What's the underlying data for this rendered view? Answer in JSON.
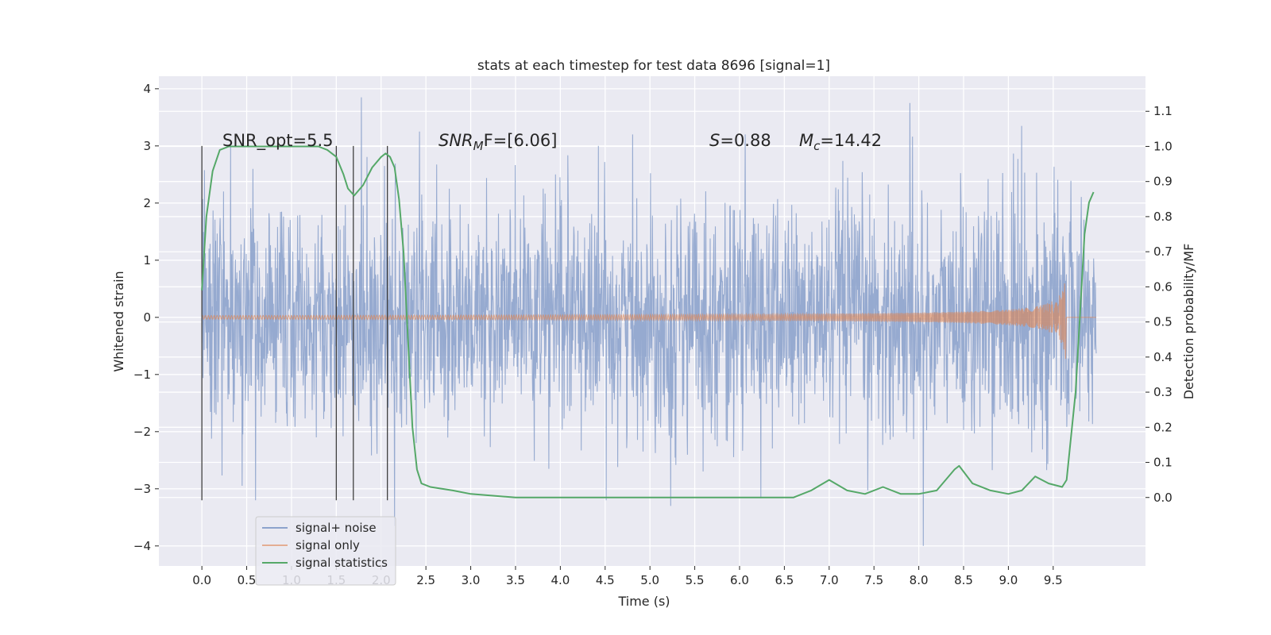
{
  "chart_data": {
    "type": "line",
    "title": "stats at each timestep for test data 8696 [signal=1]",
    "xlabel": "Time (s)",
    "ylabel": "Whitened strain",
    "y2label": "Detection probability/MF",
    "xlim": [
      -0.48,
      10.53
    ],
    "ylim": [
      -4.35,
      4.22
    ],
    "y2lim": [
      -0.195,
      1.2
    ],
    "x_ticks": [
      "0.0",
      "0.5",
      "1.0",
      "1.5",
      "2.0",
      "2.5",
      "3.0",
      "3.5",
      "4.0",
      "4.5",
      "5.0",
      "5.5",
      "6.0",
      "6.5",
      "7.0",
      "7.5",
      "8.0",
      "8.5",
      "9.0",
      "9.5"
    ],
    "x_tick_values": [
      0.0,
      0.5,
      1.0,
      1.5,
      2.0,
      2.5,
      3.0,
      3.5,
      4.0,
      4.5,
      5.0,
      5.5,
      6.0,
      6.5,
      7.0,
      7.5,
      8.0,
      8.5,
      9.0,
      9.5
    ],
    "y_ticks": [
      "−4",
      "−3",
      "−2",
      "−1",
      "0",
      "1",
      "2",
      "3",
      "4"
    ],
    "y_tick_values": [
      -4,
      -3,
      -2,
      -1,
      0,
      1,
      2,
      3,
      4
    ],
    "y2_ticks": [
      "0.0",
      "0.1",
      "0.2",
      "0.3",
      "0.4",
      "0.5",
      "0.6",
      "0.7",
      "0.8",
      "0.9",
      "1.0",
      "1.1"
    ],
    "y2_tick_values": [
      0.0,
      0.1,
      0.2,
      0.3,
      0.4,
      0.5,
      0.6,
      0.7,
      0.8,
      0.9,
      1.0,
      1.1
    ],
    "grid": true,
    "legend_position": "lower-left",
    "annotations": {
      "snr_opt": "SNR_opt=5.5",
      "snr_mf_base": "SNR",
      "snr_mf_sub": "M",
      "snr_mf_rest": "F=[6.06]",
      "s_label": "S",
      "s_value": "=0.88",
      "mc_label": "M",
      "mc_sub": "c",
      "mc_value": "=14.42"
    },
    "vertical_markers_x": [
      0.0,
      1.5,
      1.69,
      2.07
    ],
    "vertical_markers_range": [
      -3.2,
      3.0
    ],
    "series": [
      {
        "name": "signal+ noise",
        "color": "#8da3cc",
        "x_range": [
          0.0,
          9.98
        ],
        "envelope_approx": 2.4,
        "notable_peaks": [
          {
            "x": 1.78,
            "y": 3.85
          },
          {
            "x": 7.9,
            "y": 3.75
          },
          {
            "x": 8.05,
            "y": -4.0
          },
          {
            "x": 2.15,
            "y": -3.65
          },
          {
            "x": 0.6,
            "y": -3.2
          },
          {
            "x": 5.23,
            "y": -3.3
          },
          {
            "x": 9.15,
            "y": 3.35
          },
          {
            "x": 2.43,
            "y": 3.25
          }
        ]
      },
      {
        "name": "signal only",
        "color": "#dd8452",
        "x_range": [
          0.0,
          9.98
        ],
        "merger_time": 9.65,
        "peak_amplitude": 0.95
      },
      {
        "name": "signal statistics",
        "color": "#55a868",
        "x": [
          0.0,
          0.05,
          0.12,
          0.2,
          0.3,
          0.5,
          0.8,
          1.0,
          1.3,
          1.4,
          1.5,
          1.58,
          1.63,
          1.7,
          1.8,
          1.9,
          2.0,
          2.05,
          2.1,
          2.15,
          2.2,
          2.25,
          2.3,
          2.35,
          2.4,
          2.45,
          2.55,
          2.8,
          3.0,
          3.5,
          4.0,
          4.3,
          4.5,
          5.0,
          5.3,
          6.0,
          6.3,
          6.6,
          6.8,
          7.0,
          7.2,
          7.4,
          7.6,
          7.8,
          8.0,
          8.2,
          8.4,
          8.45,
          8.6,
          8.8,
          9.0,
          9.15,
          9.3,
          9.45,
          9.6,
          9.65,
          9.75,
          9.85,
          9.9,
          9.95
        ],
        "values": [
          0.59,
          0.8,
          0.93,
          0.99,
          1.0,
          1.0,
          1.0,
          1.0,
          1.0,
          0.99,
          0.97,
          0.92,
          0.88,
          0.86,
          0.89,
          0.94,
          0.97,
          0.98,
          0.97,
          0.94,
          0.85,
          0.7,
          0.45,
          0.2,
          0.08,
          0.04,
          0.03,
          0.02,
          0.01,
          0.0,
          0.0,
          0.0,
          0.0,
          0.0,
          0.0,
          0.0,
          0.0,
          0.0,
          0.02,
          0.05,
          0.02,
          0.01,
          0.03,
          0.01,
          0.01,
          0.02,
          0.08,
          0.09,
          0.04,
          0.02,
          0.01,
          0.02,
          0.06,
          0.04,
          0.03,
          0.05,
          0.3,
          0.75,
          0.84,
          0.87
        ]
      }
    ]
  }
}
